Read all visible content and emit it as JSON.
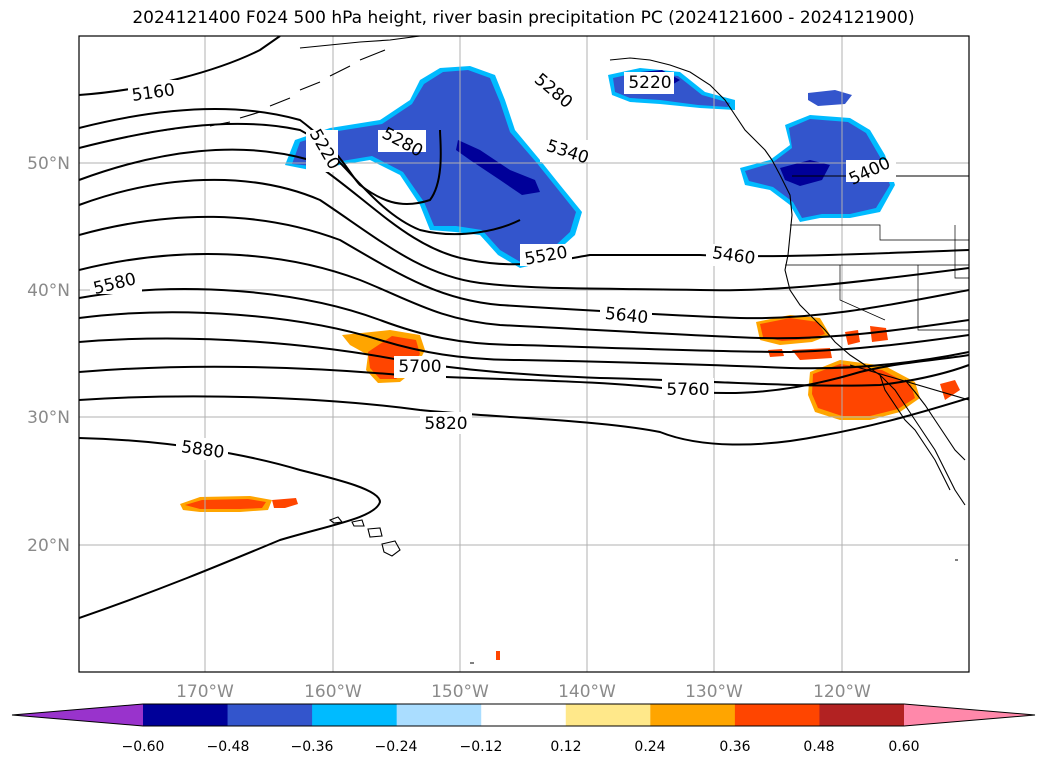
{
  "title": "2024121400 F024 500 hPa height, river basin precipitation PC (2024121600 - 2024121900)",
  "map": {
    "lat_labels": [
      "50°N",
      "40°N",
      "30°N",
      "20°N"
    ],
    "lon_labels": [
      "170°W",
      "160°W",
      "150°W",
      "140°W",
      "130°W",
      "120°W"
    ],
    "contour_labels": [
      "5160",
      "5220",
      "5280",
      "5220",
      "5280",
      "5340",
      "5400",
      "5460",
      "5520",
      "5580",
      "5640",
      "5700",
      "5760",
      "5820",
      "5880"
    ]
  },
  "colorbar": {
    "colors": [
      "#9933cc",
      "#000099",
      "#3355cc",
      "#00bbff",
      "#aaddff",
      "#ffffff",
      "#ffe88a",
      "#ffa500",
      "#ff4500",
      "#b22222",
      "#ff88aa"
    ],
    "tick_labels": [
      "−0.60",
      "−0.48",
      "−0.36",
      "−0.24",
      "−0.12",
      "0.12",
      "0.24",
      "0.36",
      "0.48",
      "0.60"
    ]
  }
}
